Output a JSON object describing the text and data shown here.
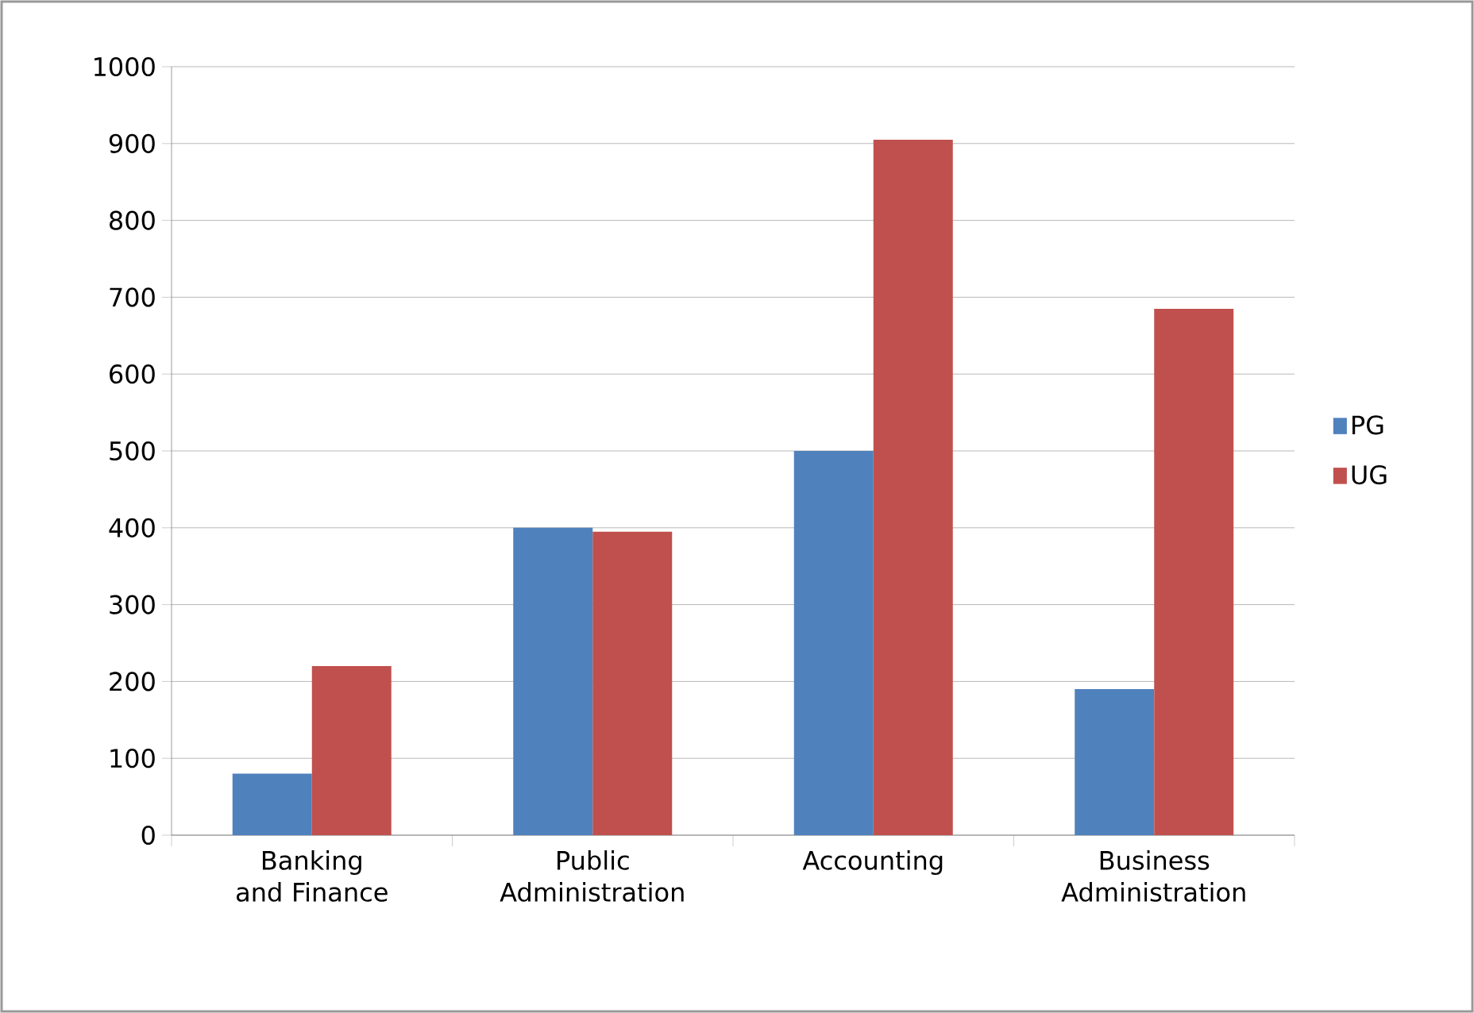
{
  "chart_data": {
    "type": "bar",
    "categories": [
      "Banking and Finance",
      "Public Administration",
      "Accounting",
      "Business Administration"
    ],
    "series": [
      {
        "name": "PG",
        "color": "#4f81bd",
        "values": [
          80,
          400,
          500,
          190
        ]
      },
      {
        "name": "UG",
        "color": "#c0504d",
        "values": [
          220,
          395,
          905,
          685
        ]
      }
    ],
    "ylim": [
      0,
      1000
    ],
    "yticks": [
      0,
      100,
      200,
      300,
      400,
      500,
      600,
      700,
      800,
      900,
      1000
    ],
    "grid": "y",
    "legend": "right"
  }
}
